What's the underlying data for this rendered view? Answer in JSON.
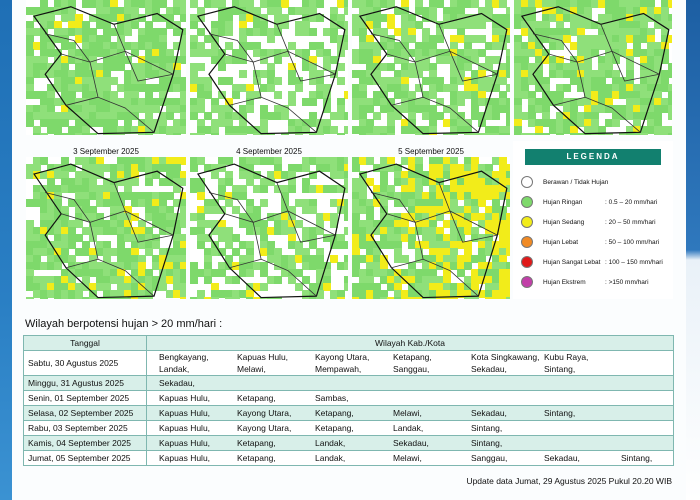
{
  "maps": [
    {
      "date": ""
    },
    {
      "date": ""
    },
    {
      "date": ""
    },
    {
      "date": ""
    },
    {
      "date": "3 September 2025"
    },
    {
      "date": "4 September 2025"
    },
    {
      "date": "5 September 2025"
    }
  ],
  "legend": {
    "title": "LEGENDA",
    "items": [
      {
        "label": "Berawan / Tidak Hujan",
        "range": "",
        "color": "#ffffff"
      },
      {
        "label": "Hujan Ringan",
        "range": ": 0.5 – 20 mm/hari",
        "color": "#7ed96b"
      },
      {
        "label": "Hujan Sedang",
        "range": ": 20 – 50 mm/hari",
        "color": "#f2ec1a"
      },
      {
        "label": "Hujan Lebat",
        "range": ": 50 – 100 mm/hari",
        "color": "#f08a24"
      },
      {
        "label": "Hujan Sangat Lebat",
        "range": ": 100 – 150 mm/hari",
        "color": "#e01a1a"
      },
      {
        "label": "Hujan Ekstrem",
        "range": ": >150 mm/hari",
        "color": "#c23fa8"
      }
    ]
  },
  "section_title": "Wilayah berpotensi hujan > 20 mm/hari :",
  "table": {
    "headers": [
      "Tanggal",
      "Wilayah Kab./Kota"
    ],
    "rows": [
      {
        "date": "Sabtu, 30 Agustus 2025",
        "lines": [
          [
            "Bengkayang,",
            "Kapuas Hulu,",
            "Kayong Utara,",
            "Ketapang,",
            "Kota Singkawang,",
            "Kubu Raya,"
          ],
          [
            "Landak,",
            "Melawi,",
            "Mempawah,",
            "Sanggau,",
            "Sekadau,",
            "Sintang,"
          ]
        ]
      },
      {
        "date": "Minggu, 31 Agustus 2025",
        "lines": [
          [
            "Sekadau,"
          ]
        ]
      },
      {
        "date": "Senin, 01 September 2025",
        "lines": [
          [
            "Kapuas Hulu,",
            "Ketapang,",
            "Sambas,"
          ]
        ]
      },
      {
        "date": "Selasa, 02 September 2025",
        "lines": [
          [
            "Kapuas Hulu,",
            "Kayong Utara,",
            "Ketapang,",
            "Melawi,",
            "Sekadau,",
            "Sintang,"
          ]
        ]
      },
      {
        "date": "Rabu, 03 September 2025",
        "lines": [
          [
            "Kapuas Hulu,",
            "Kayong Utara,",
            "Ketapang,",
            "Landak,",
            "Sintang,"
          ]
        ]
      },
      {
        "date": "Kamis, 04 September 2025",
        "lines": [
          [
            "Kapuas Hulu,",
            "Ketapang,",
            "Landak,",
            "Sekadau,",
            "Sintang,"
          ]
        ]
      },
      {
        "date": "Jumat, 05 September 2025",
        "lines": [
          [
            "Kapuas Hulu,",
            "Ketapang,",
            "Landak,",
            "Melawi,",
            "Sanggau,",
            "Sekadau,",
            "Sintang,"
          ]
        ]
      }
    ]
  },
  "update_text": "Update data Jumat, 29 Agustus 2025 Pukul 20.20 WIB"
}
